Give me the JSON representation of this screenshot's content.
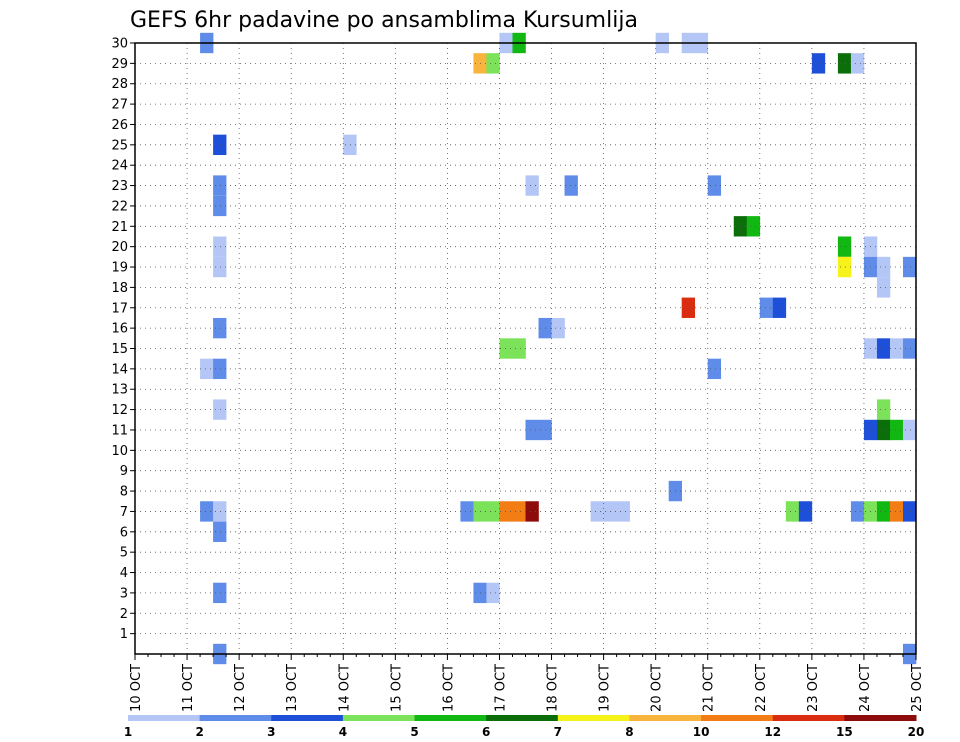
{
  "chart_data": {
    "type": "heatmap",
    "title": "GEFS 6hr padavine po ansamblima Kursumlija",
    "xlabel": "",
    "ylabel": "",
    "x_tick_labels": [
      "10 OCT",
      "11 OCT",
      "12 OCT",
      "13 OCT",
      "14 OCT",
      "15 OCT",
      "16 OCT",
      "17 OCT",
      "18 OCT",
      "19 OCT",
      "20 OCT",
      "21 OCT",
      "22 OCT",
      "23 OCT",
      "24 OCT",
      "25 OCT"
    ],
    "y_tick_labels": [
      "1",
      "2",
      "3",
      "4",
      "5",
      "6",
      "7",
      "8",
      "9",
      "10",
      "11",
      "12",
      "13",
      "14",
      "15",
      "16",
      "17",
      "18",
      "19",
      "20",
      "21",
      "22",
      "23",
      "24",
      "25",
      "26",
      "27",
      "28",
      "29",
      "30"
    ],
    "x_unit": "6-hour step from 10 OCT 00Z",
    "xlim": [
      0,
      60
    ],
    "ylim": [
      0,
      30
    ],
    "grid": true,
    "colorbar": {
      "labels": [
        "1",
        "2",
        "3",
        "4",
        "5",
        "6",
        "7",
        "8",
        "10",
        "12",
        "15",
        "20"
      ],
      "colors": [
        "#b4c6f5",
        "#5f8ce8",
        "#1e4fd9",
        "#7be25a",
        "#12b812",
        "#0b6e0b",
        "#f6f21a",
        "#f8b43c",
        "#f27d15",
        "#da2c0f",
        "#8e0b0b"
      ]
    },
    "cells": [
      {
        "x": 5,
        "y": 30,
        "c": 1
      },
      {
        "x": 28,
        "y": 30,
        "c": 0
      },
      {
        "x": 29,
        "y": 30,
        "c": 4
      },
      {
        "x": 40,
        "y": 30,
        "c": 0
      },
      {
        "x": 42,
        "y": 30,
        "c": 0
      },
      {
        "x": 43,
        "y": 30,
        "c": 0
      },
      {
        "x": 26,
        "y": 29,
        "c": 7
      },
      {
        "x": 27,
        "y": 29,
        "c": 3
      },
      {
        "x": 52,
        "y": 29,
        "c": 2
      },
      {
        "x": 54,
        "y": 29,
        "c": 5
      },
      {
        "x": 55,
        "y": 29,
        "c": 0
      },
      {
        "x": 6,
        "y": 25,
        "c": 2
      },
      {
        "x": 16,
        "y": 25,
        "c": 0
      },
      {
        "x": 6,
        "y": 23,
        "c": 1
      },
      {
        "x": 30,
        "y": 23,
        "c": 0
      },
      {
        "x": 33,
        "y": 23,
        "c": 1
      },
      {
        "x": 44,
        "y": 23,
        "c": 1
      },
      {
        "x": 6,
        "y": 22,
        "c": 1
      },
      {
        "x": 46,
        "y": 21,
        "c": 5
      },
      {
        "x": 47,
        "y": 21,
        "c": 4
      },
      {
        "x": 6,
        "y": 20,
        "c": 0
      },
      {
        "x": 54,
        "y": 20,
        "c": 4
      },
      {
        "x": 56,
        "y": 20,
        "c": 0
      },
      {
        "x": 6,
        "y": 19,
        "c": 0
      },
      {
        "x": 54,
        "y": 19,
        "c": 6
      },
      {
        "x": 56,
        "y": 19,
        "c": 1
      },
      {
        "x": 57,
        "y": 19,
        "c": 0
      },
      {
        "x": 59,
        "y": 19,
        "c": 1
      },
      {
        "x": 57,
        "y": 18,
        "c": 0
      },
      {
        "x": 42,
        "y": 17,
        "c": 9
      },
      {
        "x": 48,
        "y": 17,
        "c": 1
      },
      {
        "x": 49,
        "y": 17,
        "c": 2
      },
      {
        "x": 6,
        "y": 16,
        "c": 1
      },
      {
        "x": 31,
        "y": 16,
        "c": 1
      },
      {
        "x": 32,
        "y": 16,
        "c": 0
      },
      {
        "x": 28,
        "y": 15,
        "c": 3
      },
      {
        "x": 29,
        "y": 15,
        "c": 3
      },
      {
        "x": 56,
        "y": 15,
        "c": 0
      },
      {
        "x": 57,
        "y": 15,
        "c": 2
      },
      {
        "x": 58,
        "y": 15,
        "c": 0
      },
      {
        "x": 59,
        "y": 15,
        "c": 1
      },
      {
        "x": 5,
        "y": 14,
        "c": 0
      },
      {
        "x": 6,
        "y": 14,
        "c": 1
      },
      {
        "x": 44,
        "y": 14,
        "c": 1
      },
      {
        "x": 6,
        "y": 12,
        "c": 0
      },
      {
        "x": 57,
        "y": 12,
        "c": 3
      },
      {
        "x": 30,
        "y": 11,
        "c": 1
      },
      {
        "x": 31,
        "y": 11,
        "c": 1
      },
      {
        "x": 56,
        "y": 11,
        "c": 2
      },
      {
        "x": 57,
        "y": 11,
        "c": 5
      },
      {
        "x": 58,
        "y": 11,
        "c": 4
      },
      {
        "x": 59,
        "y": 11,
        "c": 0
      },
      {
        "x": 41,
        "y": 8,
        "c": 1
      },
      {
        "x": 5,
        "y": 7,
        "c": 1
      },
      {
        "x": 6,
        "y": 7,
        "c": 0
      },
      {
        "x": 25,
        "y": 7,
        "c": 1
      },
      {
        "x": 26,
        "y": 7,
        "c": 3
      },
      {
        "x": 27,
        "y": 7,
        "c": 3
      },
      {
        "x": 28,
        "y": 7,
        "c": 8
      },
      {
        "x": 29,
        "y": 7,
        "c": 8
      },
      {
        "x": 30,
        "y": 7,
        "c": 10
      },
      {
        "x": 35,
        "y": 7,
        "c": 0
      },
      {
        "x": 36,
        "y": 7,
        "c": 0
      },
      {
        "x": 37,
        "y": 7,
        "c": 0
      },
      {
        "x": 50,
        "y": 7,
        "c": 3
      },
      {
        "x": 51,
        "y": 7,
        "c": 2
      },
      {
        "x": 55,
        "y": 7,
        "c": 1
      },
      {
        "x": 56,
        "y": 7,
        "c": 3
      },
      {
        "x": 57,
        "y": 7,
        "c": 4
      },
      {
        "x": 58,
        "y": 7,
        "c": 8
      },
      {
        "x": 59,
        "y": 7,
        "c": 2
      },
      {
        "x": 6,
        "y": 6,
        "c": 1
      },
      {
        "x": 6,
        "y": 3,
        "c": 1
      },
      {
        "x": 26,
        "y": 3,
        "c": 1
      },
      {
        "x": 27,
        "y": 3,
        "c": 0
      },
      {
        "x": 6,
        "y": 0,
        "c": 1
      },
      {
        "x": 59,
        "y": 0,
        "c": 1
      }
    ]
  }
}
